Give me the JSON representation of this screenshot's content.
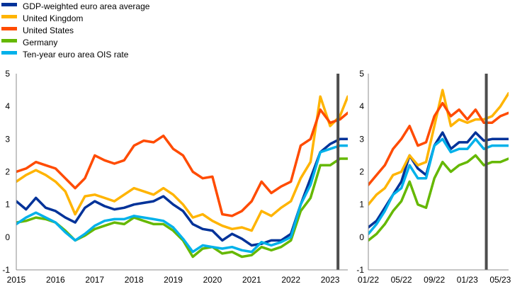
{
  "legend": [
    {
      "label": "GDP-weighted euro area average",
      "color": "#003299"
    },
    {
      "label": "United Kingdom",
      "color": "#FFB400"
    },
    {
      "label": "United States",
      "color": "#FF4B00"
    },
    {
      "label": "Germany",
      "color": "#65B800"
    },
    {
      "label": "Ten-year euro area OIS rate",
      "color": "#00B1EA"
    }
  ],
  "chart_data": [
    {
      "type": "line",
      "name": "left-panel",
      "x_ticks": [
        "2015",
        "2016",
        "2017",
        "2018",
        "2019",
        "2020",
        "2021",
        "2022",
        "2023"
      ],
      "x_tick_values": [
        2015,
        2016,
        2017,
        2018,
        2019,
        2020,
        2021,
        2022,
        2023
      ],
      "xlim": [
        2015.0,
        2023.45
      ],
      "ylim": [
        -1,
        5
      ],
      "y_ticks": [
        "-1",
        "0",
        "1",
        "2",
        "3",
        "4",
        "5"
      ],
      "y_tick_values": [
        -1,
        0,
        1,
        2,
        3,
        4,
        5
      ],
      "vertical_line_x": 2023.2,
      "x": [
        2015.0,
        2015.25,
        2015.5,
        2015.75,
        2016.0,
        2016.25,
        2016.5,
        2016.75,
        2017.0,
        2017.25,
        2017.5,
        2017.75,
        2018.0,
        2018.25,
        2018.5,
        2018.75,
        2019.0,
        2019.25,
        2019.5,
        2019.75,
        2020.0,
        2020.25,
        2020.5,
        2020.75,
        2021.0,
        2021.25,
        2021.5,
        2021.75,
        2022.0,
        2022.25,
        2022.5,
        2022.75,
        2023.0,
        2023.25,
        2023.45
      ],
      "series": [
        {
          "name": "GDP-weighted euro area average",
          "values": [
            1.1,
            0.85,
            1.2,
            0.9,
            0.8,
            0.6,
            0.45,
            0.9,
            1.1,
            0.95,
            0.85,
            0.9,
            1.0,
            1.05,
            1.1,
            1.25,
            1.0,
            0.8,
            0.4,
            0.25,
            0.2,
            -0.1,
            0.1,
            -0.05,
            -0.25,
            -0.2,
            -0.1,
            -0.1,
            0.1,
            1.0,
            1.8,
            2.6,
            2.85,
            3.0,
            3.0
          ]
        },
        {
          "name": "United Kingdom",
          "values": [
            1.7,
            1.9,
            2.05,
            1.9,
            1.7,
            1.4,
            0.7,
            1.25,
            1.3,
            1.2,
            1.1,
            1.3,
            1.5,
            1.4,
            1.3,
            1.5,
            1.3,
            1.0,
            0.6,
            0.7,
            0.5,
            0.35,
            0.25,
            0.3,
            0.2,
            0.8,
            0.65,
            0.9,
            1.1,
            1.8,
            2.3,
            4.3,
            3.4,
            3.7,
            4.3
          ]
        },
        {
          "name": "United States",
          "values": [
            2.0,
            2.1,
            2.3,
            2.2,
            2.1,
            1.8,
            1.5,
            1.8,
            2.5,
            2.35,
            2.25,
            2.35,
            2.8,
            2.95,
            2.9,
            3.1,
            2.7,
            2.5,
            2.0,
            1.8,
            1.85,
            0.7,
            0.65,
            0.8,
            1.1,
            1.7,
            1.35,
            1.55,
            1.7,
            2.8,
            3.0,
            3.9,
            3.5,
            3.6,
            3.8
          ]
        },
        {
          "name": "Germany",
          "values": [
            0.45,
            0.5,
            0.6,
            0.55,
            0.45,
            0.2,
            -0.1,
            0.05,
            0.25,
            0.35,
            0.45,
            0.4,
            0.6,
            0.5,
            0.4,
            0.4,
            0.2,
            -0.1,
            -0.6,
            -0.35,
            -0.3,
            -0.5,
            -0.45,
            -0.6,
            -0.55,
            -0.3,
            -0.4,
            -0.3,
            -0.1,
            0.8,
            1.2,
            2.2,
            2.2,
            2.4,
            2.4
          ]
        },
        {
          "name": "Ten-year euro area OIS rate",
          "values": [
            0.4,
            0.6,
            0.75,
            0.6,
            0.45,
            0.15,
            -0.1,
            0.1,
            0.35,
            0.5,
            0.55,
            0.55,
            0.65,
            0.6,
            0.55,
            0.5,
            0.3,
            -0.05,
            -0.45,
            -0.25,
            -0.3,
            -0.35,
            -0.3,
            -0.4,
            -0.45,
            -0.15,
            -0.25,
            -0.15,
            0.0,
            1.0,
            1.6,
            2.6,
            2.7,
            2.8,
            2.8
          ]
        }
      ]
    },
    {
      "type": "line",
      "name": "right-panel",
      "x_ticks": [
        "01/22",
        "05/22",
        "09/22",
        "01/23",
        "05/23"
      ],
      "x_tick_values": [
        "2022-01",
        "2022-05",
        "2022-09",
        "2023-01",
        "2023-05"
      ],
      "xlim": [
        "2022-01",
        "2023-06"
      ],
      "ylim": [
        -1,
        5
      ],
      "y_ticks": [
        "-1",
        "0",
        "1",
        "2",
        "3",
        "4",
        "5"
      ],
      "y_tick_values": [
        -1,
        0,
        1,
        2,
        3,
        4,
        5
      ],
      "vertical_line_x": "2023-03-10",
      "x": [
        "2022-01",
        "2022-02",
        "2022-03",
        "2022-04",
        "2022-05",
        "2022-06",
        "2022-07",
        "2022-08",
        "2022-09",
        "2022-10",
        "2022-11",
        "2022-12",
        "2023-01",
        "2023-02",
        "2023-03",
        "2023-04",
        "2023-05",
        "2023-06"
      ],
      "series": [
        {
          "name": "GDP-weighted euro area average",
          "values": [
            0.3,
            0.5,
            0.9,
            1.3,
            1.7,
            2.5,
            2.1,
            1.9,
            2.8,
            3.2,
            2.7,
            2.9,
            2.9,
            3.2,
            2.95,
            3.0,
            3.0,
            3.0
          ]
        },
        {
          "name": "United Kingdom",
          "values": [
            1.0,
            1.3,
            1.5,
            1.9,
            2.0,
            2.5,
            2.2,
            2.3,
            3.4,
            4.5,
            3.4,
            3.6,
            3.5,
            3.6,
            3.6,
            3.7,
            4.0,
            4.4
          ]
        },
        {
          "name": "United States",
          "values": [
            1.6,
            1.9,
            2.2,
            2.7,
            3.0,
            3.4,
            2.8,
            2.9,
            3.7,
            4.1,
            3.7,
            3.9,
            3.6,
            3.9,
            3.5,
            3.5,
            3.7,
            3.8
          ]
        },
        {
          "name": "Germany",
          "values": [
            -0.1,
            0.1,
            0.4,
            0.8,
            1.1,
            1.7,
            1.0,
            0.9,
            1.8,
            2.3,
            2.0,
            2.2,
            2.3,
            2.5,
            2.2,
            2.3,
            2.3,
            2.4
          ]
        },
        {
          "name": "Ten-year euro area OIS rate",
          "values": [
            0.1,
            0.4,
            0.8,
            1.3,
            1.5,
            2.2,
            1.8,
            1.8,
            2.8,
            3.0,
            2.6,
            2.7,
            2.7,
            3.0,
            2.7,
            2.8,
            2.8,
            2.8
          ]
        }
      ]
    }
  ]
}
